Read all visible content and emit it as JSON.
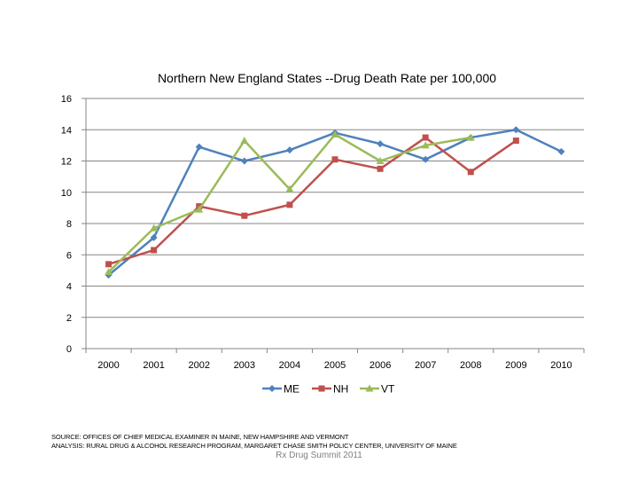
{
  "chart_data": {
    "type": "line",
    "title": "Northern New England States --Drug Death Rate per 100,000",
    "categories": [
      "2000",
      "2001",
      "2002",
      "2003",
      "2004",
      "2005",
      "2006",
      "2007",
      "2008",
      "2009",
      "2010"
    ],
    "ylim": [
      0,
      16
    ],
    "yticks": [
      0,
      2,
      4,
      6,
      8,
      10,
      12,
      14,
      16
    ],
    "grid": true,
    "legend": "bottom",
    "series": [
      {
        "name": "ME",
        "color": "#4f81bd",
        "marker": "diamond",
        "values": [
          4.7,
          7.1,
          12.9,
          12.0,
          12.7,
          13.8,
          13.1,
          12.1,
          13.5,
          14.0,
          12.6
        ]
      },
      {
        "name": "NH",
        "color": "#c0504d",
        "marker": "square",
        "values": [
          5.4,
          6.3,
          9.1,
          8.5,
          9.2,
          12.1,
          11.5,
          13.5,
          11.3,
          13.3,
          null
        ]
      },
      {
        "name": "VT",
        "color": "#9bbb59",
        "marker": "triangle",
        "values": [
          4.9,
          7.7,
          8.9,
          13.3,
          10.2,
          13.7,
          12.0,
          13.0,
          13.5,
          null,
          null
        ]
      }
    ]
  },
  "source": {
    "line1": "SOURCE: OFFICES OF CHIEF MEDICAL EXAMINER IN MAINE, NEW HAMPSHIRE AND VERMONT",
    "line2": "ANALYSIS: RURAL DRUG & ALCOHOL RESEARCH PROGRAM, MARGARET CHASE SMITH POLICY CENTER, UNIVERSITY OF MAINE"
  },
  "footer": "Rx Drug Summit 2011"
}
